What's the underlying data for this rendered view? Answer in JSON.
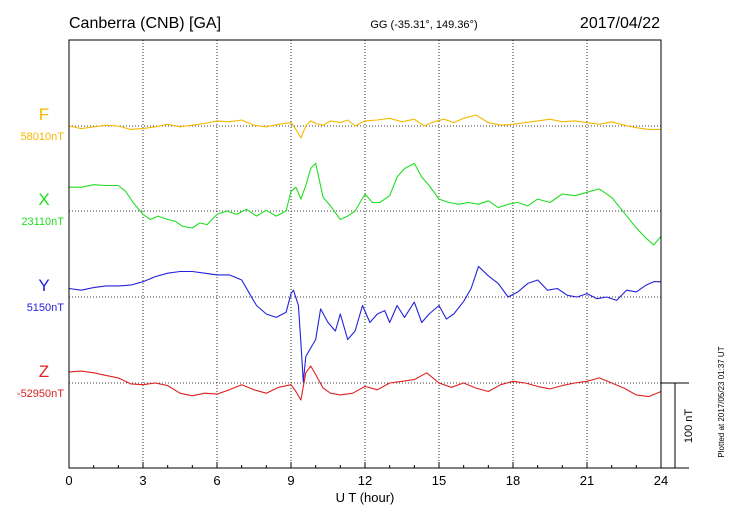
{
  "header": {
    "station": "Canberra (CNB)  [GA]",
    "coords": "GG (-35.31°, 149.36°)",
    "date": "2017/04/22"
  },
  "footnote": "Plotted at 2017/05/23 01:37 UT",
  "chart_data": {
    "type": "line",
    "title": "Canberra (CNB)  [GA]",
    "xlabel": "U T (hour)",
    "xlim": [
      0,
      24
    ],
    "xticks": [
      0,
      3,
      6,
      9,
      12,
      15,
      18,
      21,
      24
    ],
    "xtick_labels": [
      "0",
      "3",
      "6",
      "9",
      "12",
      "15",
      "18",
      "21",
      "24"
    ],
    "grid": true,
    "scale_bar": {
      "label": "100 nT",
      "nT": 100
    },
    "series": [
      {
        "name": "F",
        "baseline_label": "58010nT",
        "baseline": 58010,
        "color": "#f5b800",
        "points": [
          [
            0,
            58010
          ],
          [
            0.5,
            58007
          ],
          [
            1,
            58009
          ],
          [
            1.5,
            58011
          ],
          [
            2,
            58010
          ],
          [
            2.5,
            58006
          ],
          [
            3,
            58007
          ],
          [
            3.5,
            58009
          ],
          [
            4,
            58012
          ],
          [
            4.5,
            58009
          ],
          [
            5,
            58011
          ],
          [
            5.5,
            58013
          ],
          [
            6,
            58016
          ],
          [
            6.5,
            58015
          ],
          [
            7,
            58017
          ],
          [
            7.5,
            58011
          ],
          [
            8,
            58009
          ],
          [
            8.5,
            58012
          ],
          [
            9,
            58014
          ],
          [
            9.2,
            58006
          ],
          [
            9.4,
            57996
          ],
          [
            9.6,
            58010
          ],
          [
            9.8,
            58016
          ],
          [
            10,
            58013
          ],
          [
            10.3,
            58011
          ],
          [
            10.6,
            58016
          ],
          [
            11,
            58014
          ],
          [
            11.3,
            58017
          ],
          [
            11.6,
            58010
          ],
          [
            12,
            58016
          ],
          [
            12.5,
            58017
          ],
          [
            13,
            58019
          ],
          [
            13.5,
            58015
          ],
          [
            14,
            58018
          ],
          [
            14.4,
            58010
          ],
          [
            14.8,
            58015
          ],
          [
            15.2,
            58018
          ],
          [
            15.6,
            58014
          ],
          [
            16,
            58019
          ],
          [
            16.5,
            58023
          ],
          [
            17,
            58014
          ],
          [
            17.5,
            58011
          ],
          [
            18,
            58012
          ],
          [
            18.5,
            58014
          ],
          [
            19,
            58016
          ],
          [
            19.5,
            58018
          ],
          [
            20,
            58015
          ],
          [
            20.5,
            58016
          ],
          [
            21,
            58014
          ],
          [
            21.5,
            58012
          ],
          [
            22,
            58015
          ],
          [
            22.5,
            58011
          ],
          [
            23,
            58008
          ],
          [
            23.5,
            58006
          ],
          [
            24,
            58006
          ]
        ]
      },
      {
        "name": "X",
        "baseline_label": "23110nT",
        "baseline": 23110,
        "color": "#22dd22",
        "points": [
          [
            0,
            23138
          ],
          [
            0.5,
            23138
          ],
          [
            1,
            23141
          ],
          [
            1.5,
            23140
          ],
          [
            2,
            23140
          ],
          [
            2.3,
            23133
          ],
          [
            2.6,
            23120
          ],
          [
            3,
            23106
          ],
          [
            3.3,
            23100
          ],
          [
            3.6,
            23104
          ],
          [
            4,
            23100
          ],
          [
            4.3,
            23098
          ],
          [
            4.6,
            23092
          ],
          [
            5,
            23090
          ],
          [
            5.3,
            23096
          ],
          [
            5.6,
            23094
          ],
          [
            6,
            23106
          ],
          [
            6.4,
            23110
          ],
          [
            6.8,
            23106
          ],
          [
            7.2,
            23112
          ],
          [
            7.6,
            23104
          ],
          [
            8,
            23111
          ],
          [
            8.4,
            23104
          ],
          [
            8.8,
            23110
          ],
          [
            9,
            23133
          ],
          [
            9.2,
            23138
          ],
          [
            9.4,
            23124
          ],
          [
            9.6,
            23140
          ],
          [
            9.8,
            23160
          ],
          [
            10,
            23166
          ],
          [
            10.3,
            23126
          ],
          [
            10.6,
            23116
          ],
          [
            11,
            23100
          ],
          [
            11.3,
            23104
          ],
          [
            11.6,
            23110
          ],
          [
            12,
            23130
          ],
          [
            12.3,
            23120
          ],
          [
            12.6,
            23120
          ],
          [
            13,
            23128
          ],
          [
            13.3,
            23150
          ],
          [
            13.6,
            23160
          ],
          [
            14,
            23166
          ],
          [
            14.3,
            23150
          ],
          [
            14.6,
            23140
          ],
          [
            15,
            23124
          ],
          [
            15.4,
            23120
          ],
          [
            15.8,
            23118
          ],
          [
            16.2,
            23120
          ],
          [
            16.6,
            23118
          ],
          [
            17,
            23122
          ],
          [
            17.4,
            23114
          ],
          [
            17.8,
            23118
          ],
          [
            18.2,
            23120
          ],
          [
            18.6,
            23116
          ],
          [
            19,
            23124
          ],
          [
            19.5,
            23120
          ],
          [
            20,
            23130
          ],
          [
            20.5,
            23128
          ],
          [
            21,
            23132
          ],
          [
            21.5,
            23136
          ],
          [
            22,
            23126
          ],
          [
            22.5,
            23108
          ],
          [
            23,
            23090
          ],
          [
            23.4,
            23078
          ],
          [
            23.7,
            23070
          ],
          [
            24,
            23080
          ]
        ]
      },
      {
        "name": "Y",
        "baseline_label": "5150nT",
        "baseline": 5150,
        "color": "#2222dd",
        "points": [
          [
            0,
            5160
          ],
          [
            0.5,
            5158
          ],
          [
            1,
            5161
          ],
          [
            1.5,
            5163
          ],
          [
            2,
            5163
          ],
          [
            2.5,
            5164
          ],
          [
            3,
            5168
          ],
          [
            3.5,
            5174
          ],
          [
            4,
            5178
          ],
          [
            4.5,
            5180
          ],
          [
            5,
            5180
          ],
          [
            5.5,
            5178
          ],
          [
            6,
            5176
          ],
          [
            6.5,
            5176
          ],
          [
            7,
            5170
          ],
          [
            7.3,
            5155
          ],
          [
            7.6,
            5140
          ],
          [
            8,
            5130
          ],
          [
            8.4,
            5126
          ],
          [
            8.8,
            5132
          ],
          [
            9,
            5154
          ],
          [
            9.1,
            5158
          ],
          [
            9.3,
            5140
          ],
          [
            9.4,
            5096
          ],
          [
            9.5,
            5050
          ],
          [
            9.6,
            5080
          ],
          [
            9.8,
            5090
          ],
          [
            10,
            5100
          ],
          [
            10.2,
            5136
          ],
          [
            10.5,
            5120
          ],
          [
            10.8,
            5110
          ],
          [
            11,
            5130
          ],
          [
            11.3,
            5100
          ],
          [
            11.6,
            5110
          ],
          [
            11.9,
            5140
          ],
          [
            12.2,
            5120
          ],
          [
            12.5,
            5130
          ],
          [
            12.8,
            5134
          ],
          [
            13,
            5120
          ],
          [
            13.3,
            5140
          ],
          [
            13.6,
            5126
          ],
          [
            14,
            5144
          ],
          [
            14.3,
            5120
          ],
          [
            14.6,
            5130
          ],
          [
            15,
            5140
          ],
          [
            15.3,
            5124
          ],
          [
            15.6,
            5130
          ],
          [
            16,
            5145
          ],
          [
            16.3,
            5160
          ],
          [
            16.6,
            5186
          ],
          [
            17,
            5175
          ],
          [
            17.4,
            5166
          ],
          [
            17.8,
            5150
          ],
          [
            18.2,
            5156
          ],
          [
            18.6,
            5166
          ],
          [
            19,
            5170
          ],
          [
            19.4,
            5158
          ],
          [
            19.8,
            5160
          ],
          [
            20.2,
            5152
          ],
          [
            20.6,
            5150
          ],
          [
            21,
            5154
          ],
          [
            21.4,
            5148
          ],
          [
            21.8,
            5150
          ],
          [
            22.2,
            5146
          ],
          [
            22.6,
            5158
          ],
          [
            23,
            5156
          ],
          [
            23.4,
            5164
          ],
          [
            23.7,
            5168
          ],
          [
            24,
            5168
          ]
        ]
      },
      {
        "name": "Z",
        "baseline_label": "-52950nT",
        "baseline": -52950,
        "color": "#dd2222",
        "points": [
          [
            0,
            -52937
          ],
          [
            0.5,
            -52936
          ],
          [
            1,
            -52938
          ],
          [
            1.5,
            -52941
          ],
          [
            2,
            -52944
          ],
          [
            2.5,
            -52951
          ],
          [
            3,
            -52952
          ],
          [
            3.5,
            -52950
          ],
          [
            4,
            -52953
          ],
          [
            4.5,
            -52962
          ],
          [
            5,
            -52965
          ],
          [
            5.5,
            -52962
          ],
          [
            6,
            -52963
          ],
          [
            6.5,
            -52958
          ],
          [
            7,
            -52952
          ],
          [
            7.5,
            -52958
          ],
          [
            8,
            -52962
          ],
          [
            8.5,
            -52955
          ],
          [
            9,
            -52952
          ],
          [
            9.2,
            -52960
          ],
          [
            9.4,
            -52970
          ],
          [
            9.6,
            -52938
          ],
          [
            9.8,
            -52930
          ],
          [
            10,
            -52940
          ],
          [
            10.3,
            -52956
          ],
          [
            10.6,
            -52962
          ],
          [
            11,
            -52964
          ],
          [
            11.5,
            -52962
          ],
          [
            12,
            -52954
          ],
          [
            12.5,
            -52958
          ],
          [
            13,
            -52950
          ],
          [
            13.5,
            -52948
          ],
          [
            14,
            -52946
          ],
          [
            14.5,
            -52938
          ],
          [
            15,
            -52950
          ],
          [
            15.5,
            -52955
          ],
          [
            16,
            -52950
          ],
          [
            16.5,
            -52956
          ],
          [
            17,
            -52960
          ],
          [
            17.5,
            -52952
          ],
          [
            18,
            -52948
          ],
          [
            18.5,
            -52950
          ],
          [
            19,
            -52954
          ],
          [
            19.5,
            -52957
          ],
          [
            20,
            -52953
          ],
          [
            20.5,
            -52950
          ],
          [
            21,
            -52948
          ],
          [
            21.5,
            -52944
          ],
          [
            22,
            -52950
          ],
          [
            22.5,
            -52956
          ],
          [
            23,
            -52964
          ],
          [
            23.5,
            -52966
          ],
          [
            24,
            -52960
          ]
        ]
      }
    ]
  }
}
